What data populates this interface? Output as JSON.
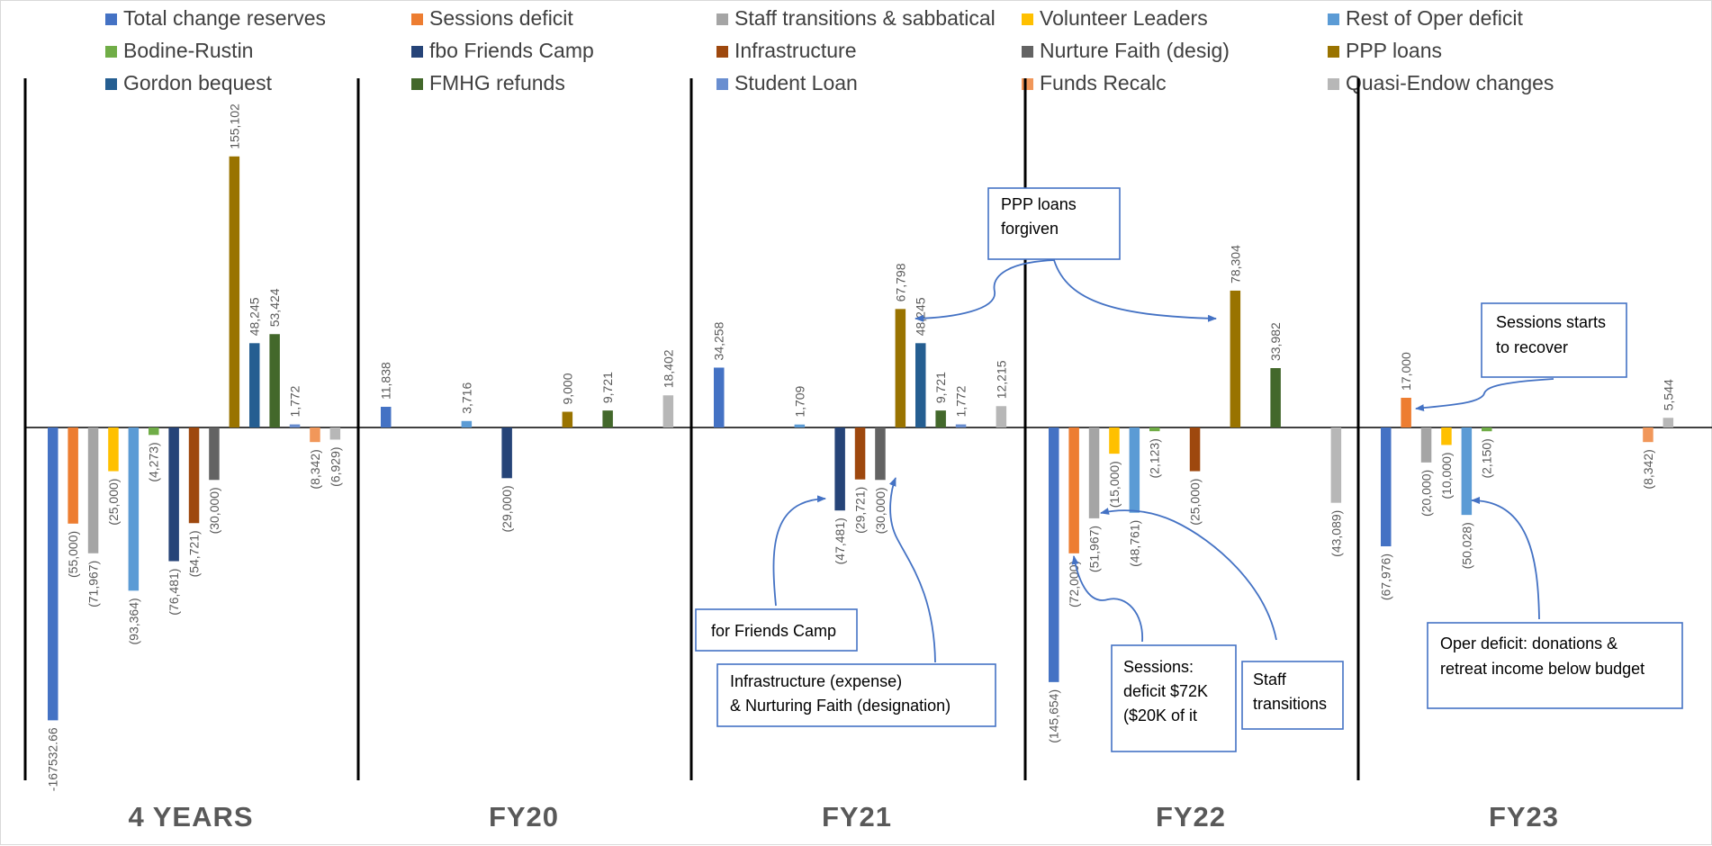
{
  "chart_data": {
    "type": "bar",
    "panels": [
      "4 YEARS",
      "FY20",
      "FY21",
      "FY22",
      "FY23"
    ],
    "series": [
      {
        "name": "Total change reserves",
        "color": "#4472c4",
        "values": [
          -167532.66,
          11838,
          34258,
          -145654,
          -67976
        ],
        "labels": [
          "-167532.66",
          "11,838",
          "34,258",
          "(145,654)",
          "(67,976)"
        ]
      },
      {
        "name": "Sessions deficit",
        "color": "#ed7d31",
        "values": [
          -55000,
          null,
          null,
          -72000,
          17000
        ],
        "labels": [
          "(55,000)",
          "",
          "",
          "(72,000)",
          "17,000"
        ]
      },
      {
        "name": "Staff transitions & sabbatical",
        "color": "#a5a5a5",
        "values": [
          -71967,
          null,
          null,
          -51967,
          -20000
        ],
        "labels": [
          "(71,967)",
          "",
          "",
          "(51,967)",
          "(20,000)"
        ]
      },
      {
        "name": "Volunteer Leaders",
        "color": "#ffc000",
        "values": [
          -25000,
          null,
          null,
          -15000,
          -10000
        ],
        "labels": [
          "(25,000)",
          "",
          "",
          "(15,000)",
          "(10,000)"
        ]
      },
      {
        "name": "Rest of Oper deficit",
        "color": "#5b9bd5",
        "values": [
          -93364,
          3716,
          1709,
          -48761,
          -50028
        ],
        "labels": [
          "(93,364)",
          "3,716",
          "1,709",
          "(48,761)",
          "(50,028)"
        ]
      },
      {
        "name": "Bodine-Rustin",
        "color": "#70ad47",
        "values": [
          -4273,
          null,
          null,
          -2123,
          -2150
        ],
        "labels": [
          "(4,273)",
          "",
          "",
          "(2,123)",
          "(2,150)"
        ]
      },
      {
        "name": "fbo Friends Camp",
        "color": "#264478",
        "values": [
          -76481,
          -29000,
          -47481,
          null,
          null
        ],
        "labels": [
          "(76,481)",
          "(29,000)",
          "(47,481)",
          "",
          ""
        ]
      },
      {
        "name": "Infrastructure",
        "color": "#9e480e",
        "values": [
          -54721,
          null,
          -29721,
          -25000,
          null
        ],
        "labels": [
          "(54,721)",
          "",
          "(29,721)",
          "(25,000)",
          ""
        ]
      },
      {
        "name": "Nurture Faith (desig)",
        "color": "#636363",
        "values": [
          -30000,
          null,
          -30000,
          null,
          null
        ],
        "labels": [
          "(30,000)",
          "",
          "(30,000)",
          "",
          ""
        ]
      },
      {
        "name": "PPP loans",
        "color": "#997300",
        "values": [
          155102,
          9000,
          67798,
          78304,
          null
        ],
        "labels": [
          "155,102",
          "9,000",
          "67,798",
          "78,304",
          ""
        ]
      },
      {
        "name": "Gordon bequest",
        "color": "#255e91",
        "values": [
          48245,
          null,
          48245,
          null,
          null
        ],
        "labels": [
          "48,245",
          "",
          "48,245",
          "",
          ""
        ]
      },
      {
        "name": "FMHG refunds",
        "color": "#43682b",
        "values": [
          53424,
          9721,
          9721,
          33982,
          null
        ],
        "labels": [
          "53,424",
          "9,721",
          "9,721",
          "33,982",
          ""
        ]
      },
      {
        "name": "Student Loan",
        "color": "#698ed0",
        "values": [
          1772,
          null,
          1772,
          null,
          null
        ],
        "labels": [
          "1,772",
          "",
          "1,772",
          "",
          ""
        ]
      },
      {
        "name": "Funds Recalc",
        "color": "#f1975a",
        "values": [
          -8342,
          null,
          null,
          null,
          -8342
        ],
        "labels": [
          "(8,342)",
          "",
          "",
          "",
          "(8,342)"
        ]
      },
      {
        "name": "Quasi-Endow changes",
        "color": "#b7b7b7",
        "values": [
          -6929,
          18402,
          12215,
          -43089,
          5544
        ],
        "labels": [
          "(6,929)",
          "18,402",
          "12,215",
          "(43,089)",
          "5,544"
        ]
      }
    ],
    "legend_position": "top",
    "grid": false,
    "annotations": [
      {
        "lines": [
          "for Friends Camp"
        ]
      },
      {
        "lines": [
          "Infrastructure (expense)",
          "& Nurturing Faith (designation)"
        ]
      },
      {
        "lines": [
          "PPP loans",
          "forgiven"
        ]
      },
      {
        "lines": [
          "Sessions:",
          " deficit $72K",
          " ($20K of it"
        ]
      },
      {
        "lines": [
          "Staff",
          "transitions"
        ]
      },
      {
        "lines": [
          "Sessions starts",
          "to recover"
        ]
      },
      {
        "lines": [
          "Oper deficit: donations &",
          "retreat income below budget"
        ]
      }
    ]
  }
}
